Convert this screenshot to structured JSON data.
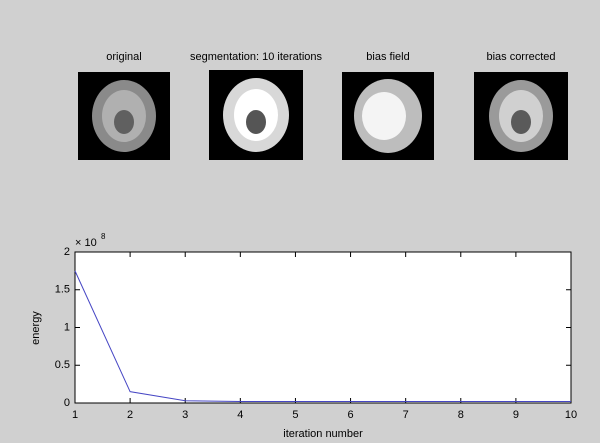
{
  "images": [
    {
      "title": "original"
    },
    {
      "title": "segmentation: 10 iterations"
    },
    {
      "title": "bias field"
    },
    {
      "title": "bias corrected"
    }
  ],
  "chart_data": {
    "type": "line",
    "x_label": "iteration number",
    "y_label": "energy",
    "y_multiplier": "× 10",
    "y_multiplier_power": "8",
    "x": [
      1,
      2,
      3,
      4,
      5,
      6,
      7,
      8,
      9,
      10
    ],
    "values": [
      1.75,
      0.15,
      0.03,
      0.02,
      0.02,
      0.02,
      0.02,
      0.02,
      0.02,
      0.02
    ],
    "color": "#4646c4",
    "xlim": [
      1,
      10
    ],
    "xticks": [
      1,
      2,
      3,
      4,
      5,
      6,
      7,
      8,
      9,
      10
    ],
    "ylim": [
      0,
      2
    ],
    "yticks": [
      0,
      0.5,
      1,
      1.5,
      2
    ],
    "grid": false
  }
}
